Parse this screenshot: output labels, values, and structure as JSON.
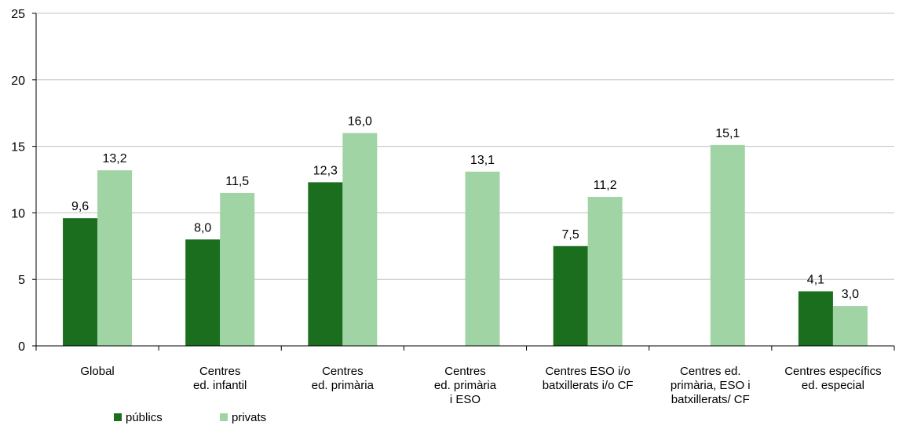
{
  "chart_data": {
    "type": "bar",
    "categories": [
      [
        "Global"
      ],
      [
        "Centres",
        "ed. infantil"
      ],
      [
        "Centres",
        "ed. primària"
      ],
      [
        "Centres",
        "ed. primària",
        "i ESO"
      ],
      [
        "Centres ESO i/o",
        "batxillerats i/o CF"
      ],
      [
        "Centres ed.",
        "primària, ESO i",
        "batxillerats/ CF"
      ],
      [
        "Centres específics",
        "ed. especial"
      ]
    ],
    "series": [
      {
        "name": "públics",
        "color": "#1a6e1e",
        "values": [
          9.6,
          8.0,
          12.3,
          null,
          7.5,
          null,
          4.1
        ],
        "labels": [
          "9,6",
          "8,0",
          "12,3",
          "",
          "7,5",
          "",
          "4,1"
        ]
      },
      {
        "name": "privats",
        "color": "#a0d4a4",
        "values": [
          13.2,
          11.5,
          16.0,
          13.1,
          11.2,
          15.1,
          3.0
        ],
        "labels": [
          "13,2",
          "11,5",
          "16,0",
          "13,1",
          "11,2",
          "15,1",
          "3,0"
        ]
      }
    ],
    "ylim": [
      0,
      25
    ],
    "yticks": [
      0,
      5,
      10,
      15,
      20,
      25
    ],
    "grid": true,
    "legend": "bottom-left"
  }
}
